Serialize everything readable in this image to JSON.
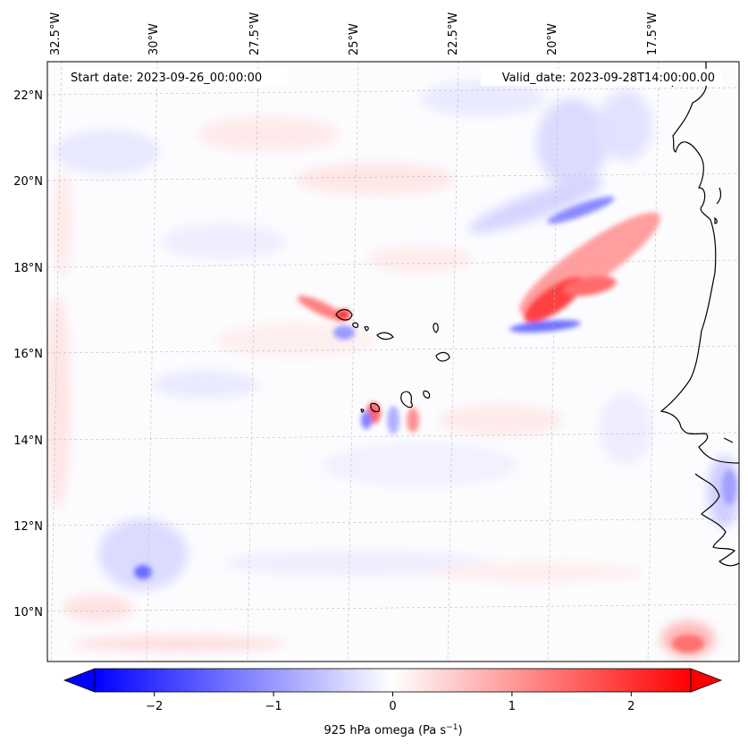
{
  "map": {
    "start_label": "Start date: 2023-09-26_00:00:00",
    "valid_label": "Valid_date: 2023-09-28T14:00:00.00",
    "lon_labels": [
      "32.5°W",
      "30°W",
      "27.5°W",
      "25°W",
      "22.5°W",
      "20°W",
      "17.5°W"
    ],
    "lat_labels": [
      "22°N",
      "20°N",
      "18°N",
      "16°N",
      "14°N",
      "12°N",
      "10°N"
    ],
    "colors": {
      "negative": "#0000ff",
      "zero": "#ffffff",
      "positive": "#ff0000",
      "coast": "#000000"
    }
  },
  "colorbar": {
    "tick_labels": [
      "−2",
      "−1",
      "0",
      "1",
      "2"
    ],
    "tick_values": [
      -2,
      -1,
      0,
      1,
      2
    ],
    "range": [
      -2.5,
      2.5
    ],
    "label_main": "925 hPa omega (Pa s",
    "label_exp": "−1",
    "label_close": ")"
  }
}
